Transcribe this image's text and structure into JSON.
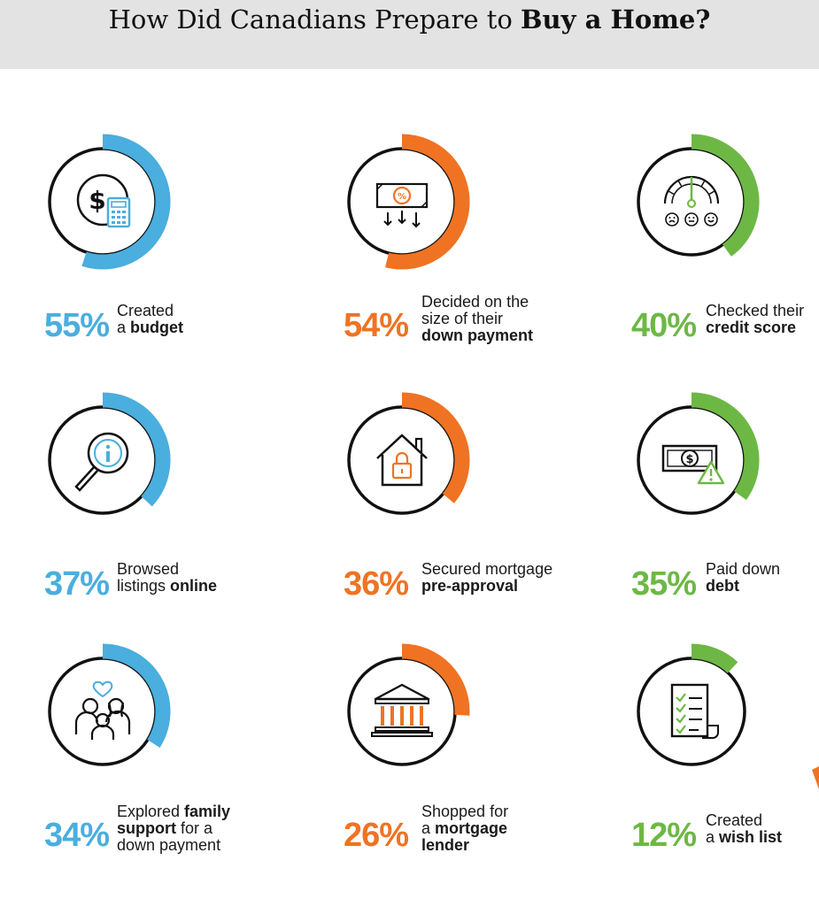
{
  "title": {
    "pre": "How Did Canadians Prepare to ",
    "bold": "Buy a Home?"
  },
  "colors": {
    "blue": "#4aaede",
    "orange": "#ef7323",
    "green": "#6db845",
    "ring": "#111111"
  },
  "chart_data": {
    "type": "donut-grid",
    "title": "How Did Canadians Prepare to Buy a Home?",
    "items": [
      {
        "value": 55,
        "label": "55%",
        "color": "blue",
        "icon": "money-calculator-icon",
        "lines": [
          [
            {
              "t": "Created"
            }
          ],
          [
            {
              "t": "a "
            },
            {
              "t": "budget",
              "b": true
            }
          ]
        ]
      },
      {
        "value": 54,
        "label": "54%",
        "color": "orange",
        "icon": "percent-bill-arrows-icon",
        "lines": [
          [
            {
              "t": "Decided on the"
            }
          ],
          [
            {
              "t": "size of their"
            }
          ],
          [
            {
              "t": "down payment",
              "b": true
            }
          ]
        ]
      },
      {
        "value": 40,
        "label": "40%",
        "color": "green",
        "icon": "credit-score-gauge-icon",
        "lines": [
          [
            {
              "t": "Checked their"
            }
          ],
          [
            {
              "t": "credit score",
              "b": true
            }
          ]
        ]
      },
      {
        "value": 37,
        "label": "37%",
        "color": "blue",
        "icon": "magnifier-info-icon",
        "lines": [
          [
            {
              "t": "Browsed"
            }
          ],
          [
            {
              "t": "listings "
            },
            {
              "t": "online",
              "b": true
            }
          ]
        ]
      },
      {
        "value": 36,
        "label": "36%",
        "color": "orange",
        "icon": "house-lock-icon",
        "lines": [
          [
            {
              "t": "Secured mortgage"
            }
          ],
          [
            {
              "t": "pre-approval",
              "b": true
            }
          ]
        ]
      },
      {
        "value": 35,
        "label": "35%",
        "color": "green",
        "icon": "bill-warning-icon",
        "lines": [
          [
            {
              "t": "Paid down"
            }
          ],
          [
            {
              "t": "debt",
              "b": true
            }
          ]
        ]
      },
      {
        "value": 34,
        "label": "34%",
        "color": "blue",
        "icon": "family-heart-icon",
        "lines": [
          [
            {
              "t": "Explored "
            },
            {
              "t": "family",
              "b": true
            }
          ],
          [
            {
              "t": "support",
              "b": true
            },
            {
              "t": " for a"
            }
          ],
          [
            {
              "t": "down payment"
            }
          ]
        ]
      },
      {
        "value": 26,
        "label": "26%",
        "color": "orange",
        "icon": "bank-building-icon",
        "lines": [
          [
            {
              "t": "Shopped for"
            }
          ],
          [
            {
              "t": "a "
            },
            {
              "t": "mortgage",
              "b": true
            }
          ],
          [
            {
              "t": "lender",
              "b": true
            }
          ]
        ]
      },
      {
        "value": 12,
        "label": "12%",
        "color": "green",
        "icon": "checklist-icon",
        "lines": [
          [
            {
              "t": "Created"
            }
          ],
          [
            {
              "t": "a "
            },
            {
              "t": "wish list",
              "b": true
            }
          ]
        ]
      }
    ]
  }
}
